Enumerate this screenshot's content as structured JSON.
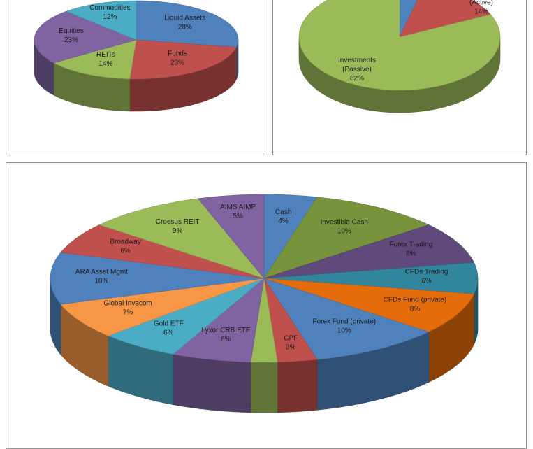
{
  "chart_data": [
    {
      "type": "pie",
      "title": "",
      "slices": [
        {
          "label": "Liquid Assets",
          "pct": "28%",
          "value": 28,
          "color": "#4f81bd"
        },
        {
          "label": "Funds",
          "pct": "23%",
          "value": 23,
          "color": "#c0504d"
        },
        {
          "label": "REITs",
          "pct": "14%",
          "value": 14,
          "color": "#9bbb59"
        },
        {
          "label": "Equities",
          "pct": "23%",
          "value": 23,
          "color": "#8064a2"
        },
        {
          "label": "Commodities",
          "pct": "12%",
          "value": 12,
          "color": "#4bacc6"
        }
      ]
    },
    {
      "type": "pie",
      "title": "",
      "slices": [
        {
          "label": "",
          "pct": "",
          "value": 4,
          "color": "#4f81bd"
        },
        {
          "label": "(Active)",
          "pct": "14%",
          "value": 14,
          "color": "#c0504d"
        },
        {
          "label": "Investments\n(Passive)",
          "pct": "82%",
          "value": 82,
          "color": "#9bbb59"
        }
      ]
    },
    {
      "type": "pie",
      "title": "",
      "slices": [
        {
          "label": "Cash",
          "pct": "4%",
          "value": 4,
          "color": "#4f81bd"
        },
        {
          "label": "Investible Cash",
          "pct": "10%",
          "value": 10,
          "color": "#77933c"
        },
        {
          "label": "Forex Trading",
          "pct": "8%",
          "value": 8,
          "color": "#604a7b"
        },
        {
          "label": "CFDs Trading",
          "pct": "6%",
          "value": 6,
          "color": "#31859c"
        },
        {
          "label": "CFDs Fund (private)",
          "pct": "8%",
          "value": 8,
          "color": "#e46c0a"
        },
        {
          "label": "Forex Fund (private)",
          "pct": "10%",
          "value": 10,
          "color": "#4f81bd"
        },
        {
          "label": "CPF",
          "pct": "3%",
          "value": 3,
          "color": "#c0504d"
        },
        {
          "label": "",
          "pct": "",
          "value": 2,
          "color": "#9bbb59"
        },
        {
          "label": "Lyxor CRB ETF",
          "pct": "6%",
          "value": 6,
          "color": "#8064a2"
        },
        {
          "label": "Gold ETF",
          "pct": "6%",
          "value": 6,
          "color": "#4bacc6"
        },
        {
          "label": "Global Invacom",
          "pct": "7%",
          "value": 7,
          "color": "#f79646"
        },
        {
          "label": "ARA Asset Mgmt",
          "pct": "10%",
          "value": 10,
          "color": "#4f81bd"
        },
        {
          "label": "Broadway",
          "pct": "6%",
          "value": 6,
          "color": "#c0504d"
        },
        {
          "label": "Croesus REIT",
          "pct": "9%",
          "value": 9,
          "color": "#9bbb59"
        },
        {
          "label": "AIMS AIMP",
          "pct": "5%",
          "value": 5,
          "color": "#8064a2"
        }
      ]
    }
  ]
}
